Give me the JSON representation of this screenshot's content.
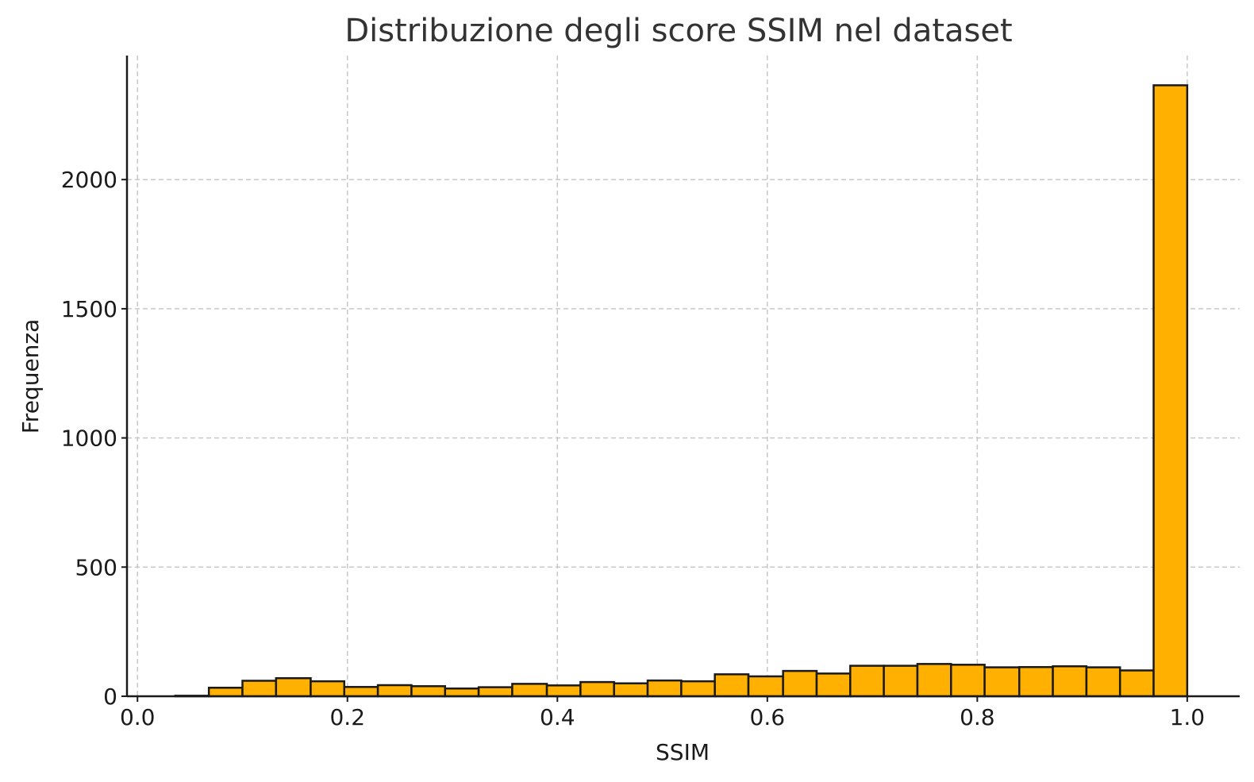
{
  "chart_data": {
    "type": "bar",
    "title": "Distribuzione degli score SSIM nel dataset",
    "xlabel": "SSIM",
    "ylabel": "Frequenza",
    "xlim": [
      -0.01,
      1.05
    ],
    "ylim": [
      0,
      2480
    ],
    "grid": true,
    "bar_color": "#ffb000",
    "edge_color": "#1a1a1a",
    "grid_color": "#c8c8c8",
    "x_ticks": [
      0.0,
      0.2,
      0.4,
      0.6,
      0.8,
      1.0
    ],
    "x_tick_labels": [
      "0.0",
      "0.2",
      "0.4",
      "0.6",
      "0.8",
      "1.0"
    ],
    "y_ticks": [
      0,
      500,
      1000,
      1500,
      2000
    ],
    "y_tick_labels": [
      "0",
      "500",
      "1000",
      "1500",
      "2000"
    ],
    "bins": [
      {
        "x0": 0.036,
        "x1": 0.068,
        "value": 2
      },
      {
        "x0": 0.068,
        "x1": 0.1,
        "value": 33
      },
      {
        "x0": 0.1,
        "x1": 0.132,
        "value": 60
      },
      {
        "x0": 0.132,
        "x1": 0.165,
        "value": 70
      },
      {
        "x0": 0.165,
        "x1": 0.197,
        "value": 58
      },
      {
        "x0": 0.197,
        "x1": 0.229,
        "value": 36
      },
      {
        "x0": 0.229,
        "x1": 0.261,
        "value": 43
      },
      {
        "x0": 0.261,
        "x1": 0.293,
        "value": 39
      },
      {
        "x0": 0.293,
        "x1": 0.325,
        "value": 30
      },
      {
        "x0": 0.325,
        "x1": 0.357,
        "value": 35
      },
      {
        "x0": 0.357,
        "x1": 0.39,
        "value": 48
      },
      {
        "x0": 0.39,
        "x1": 0.422,
        "value": 42
      },
      {
        "x0": 0.422,
        "x1": 0.454,
        "value": 55
      },
      {
        "x0": 0.454,
        "x1": 0.486,
        "value": 50
      },
      {
        "x0": 0.486,
        "x1": 0.518,
        "value": 61
      },
      {
        "x0": 0.518,
        "x1": 0.55,
        "value": 58
      },
      {
        "x0": 0.55,
        "x1": 0.582,
        "value": 85
      },
      {
        "x0": 0.582,
        "x1": 0.615,
        "value": 77
      },
      {
        "x0": 0.615,
        "x1": 0.647,
        "value": 98
      },
      {
        "x0": 0.647,
        "x1": 0.679,
        "value": 88
      },
      {
        "x0": 0.679,
        "x1": 0.711,
        "value": 118
      },
      {
        "x0": 0.711,
        "x1": 0.743,
        "value": 118
      },
      {
        "x0": 0.743,
        "x1": 0.775,
        "value": 125
      },
      {
        "x0": 0.775,
        "x1": 0.807,
        "value": 122
      },
      {
        "x0": 0.807,
        "x1": 0.84,
        "value": 112
      },
      {
        "x0": 0.84,
        "x1": 0.872,
        "value": 113
      },
      {
        "x0": 0.872,
        "x1": 0.904,
        "value": 116
      },
      {
        "x0": 0.904,
        "x1": 0.936,
        "value": 112
      },
      {
        "x0": 0.936,
        "x1": 0.968,
        "value": 100
      },
      {
        "x0": 0.968,
        "x1": 1.0,
        "value": 2365
      }
    ]
  }
}
